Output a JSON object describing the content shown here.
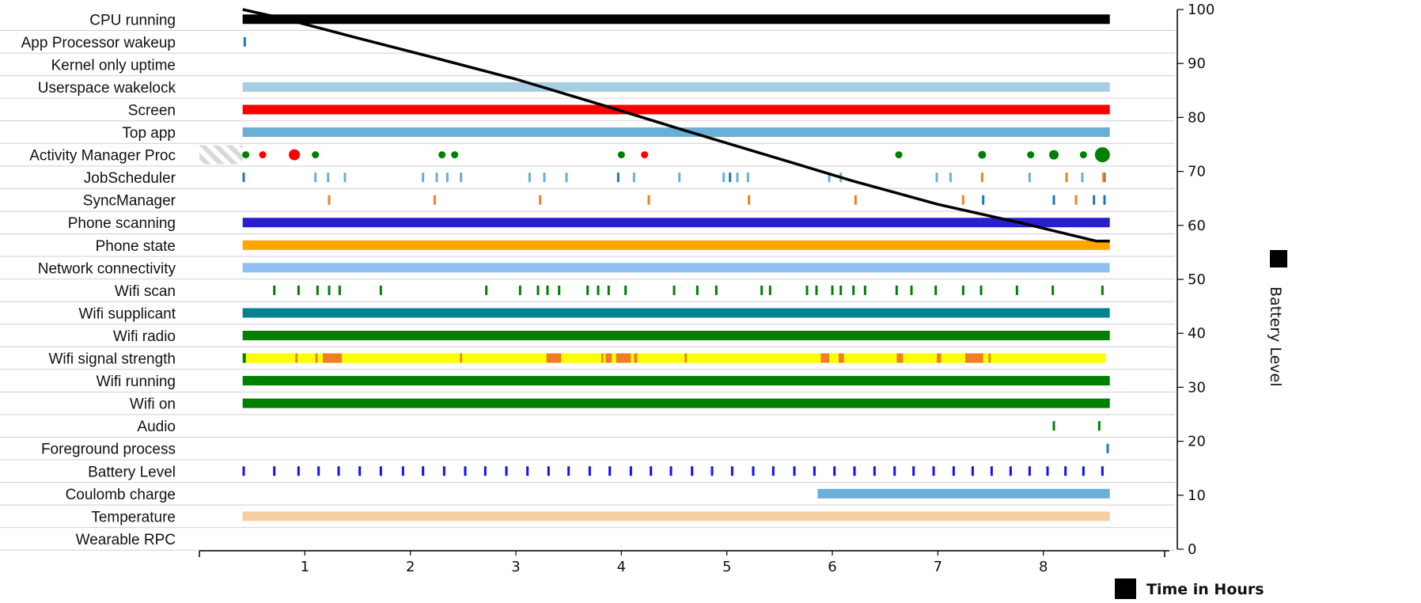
{
  "chart_data": {
    "type": "timeline",
    "xlabel": "Time in Hours",
    "ylabel": "Battery Level",
    "x_ticks": [
      1,
      2,
      3,
      4,
      5,
      6,
      7,
      8
    ],
    "y_ticks": [
      0,
      10,
      20,
      30,
      40,
      50,
      60,
      70,
      80,
      90,
      100
    ],
    "xlim": [
      0,
      9.15
    ],
    "ylim": [
      0,
      100
    ],
    "colors": {
      "black": "#000000",
      "gray": "#d9d9d9",
      "light_blue": "#a6cee3",
      "red": "#ff0000",
      "steel_blue": "#6baed6",
      "dark_blue": "#2a1fce",
      "orange": "#ffa500",
      "pale_blue": "#90c0f0",
      "teal": "#00838f",
      "green": "#008000",
      "yellow": "#ffff00",
      "peach": "#f7cfa3",
      "med_blue": "#1f78b4",
      "dark_orange": "#f07f20",
      "blue": "#1010ff"
    },
    "rows": [
      {
        "label": "CPU running",
        "items": [
          {
            "kind": "bar",
            "start": 0.41,
            "end": 8.63,
            "color": "black"
          }
        ]
      },
      {
        "label": "App Processor wakeup",
        "items": [
          {
            "kind": "ticks",
            "times": [
              0.43
            ],
            "color": "med_blue"
          }
        ]
      },
      {
        "label": "Kernel only uptime",
        "items": []
      },
      {
        "label": "Userspace wakelock",
        "items": [
          {
            "kind": "bar",
            "start": 0.41,
            "end": 8.63,
            "color": "light_blue"
          }
        ]
      },
      {
        "label": "Screen",
        "items": [
          {
            "kind": "bar",
            "start": 0.41,
            "end": 8.63,
            "color": "red"
          }
        ]
      },
      {
        "label": "Top app",
        "items": [
          {
            "kind": "bar",
            "start": 0.41,
            "end": 8.63,
            "color": "steel_blue"
          }
        ]
      },
      {
        "label": "Activity Manager Proc",
        "items": [
          {
            "kind": "hatch",
            "start": 0.0,
            "end": 0.41
          },
          {
            "kind": "dots",
            "points": [
              [
                0.44,
                0.4,
                "green"
              ],
              [
                0.6,
                0.4,
                "red"
              ],
              [
                0.9,
                0.9,
                "red"
              ],
              [
                1.1,
                0.4,
                "green"
              ],
              [
                2.3,
                0.4,
                "green"
              ],
              [
                2.42,
                0.4,
                "green"
              ],
              [
                4.0,
                0.4,
                "green"
              ],
              [
                4.22,
                0.4,
                "red"
              ],
              [
                6.63,
                0.4,
                "green"
              ],
              [
                7.42,
                0.5,
                "green"
              ],
              [
                7.88,
                0.4,
                "green"
              ],
              [
                8.1,
                0.7,
                "green"
              ],
              [
                8.38,
                0.4,
                "green"
              ],
              [
                8.56,
                1.4,
                "green"
              ]
            ]
          }
        ]
      },
      {
        "label": "JobScheduler",
        "items": [
          {
            "kind": "ticks",
            "times": [
              0.42,
              3.97,
              5.03,
              8.58
            ],
            "color": "med_blue"
          },
          {
            "kind": "ticks",
            "times": [
              1.1,
              1.22,
              1.38,
              2.12,
              2.25,
              2.35,
              2.48,
              3.13,
              3.27,
              3.48,
              4.12,
              4.55,
              4.97,
              5.1,
              5.2,
              5.97,
              6.08,
              6.99,
              7.12,
              7.87,
              8.37
            ],
            "color": "steel_blue"
          },
          {
            "kind": "ticks",
            "times": [
              7.42,
              8.22,
              8.57
            ],
            "color": "dark_orange"
          }
        ]
      },
      {
        "label": "SyncManager",
        "items": [
          {
            "kind": "ticks",
            "times": [
              1.23,
              2.23,
              3.23,
              4.26,
              5.21,
              6.22,
              7.24,
              8.31
            ],
            "color": "dark_orange"
          },
          {
            "kind": "ticks",
            "times": [
              7.43,
              8.1,
              8.48,
              8.58
            ],
            "color": "med_blue"
          }
        ]
      },
      {
        "label": "Phone scanning",
        "items": [
          {
            "kind": "bar",
            "start": 0.41,
            "end": 8.63,
            "color": "dark_blue"
          }
        ]
      },
      {
        "label": "Phone state",
        "items": [
          {
            "kind": "bar",
            "start": 0.41,
            "end": 8.63,
            "color": "orange"
          }
        ]
      },
      {
        "label": "Network connectivity",
        "items": [
          {
            "kind": "bar",
            "start": 0.41,
            "end": 8.63,
            "color": "pale_blue"
          }
        ]
      },
      {
        "label": "Wifi scan",
        "items": [
          {
            "kind": "ticks",
            "times": [
              0.71,
              0.94,
              1.12,
              1.23,
              1.33,
              1.72,
              2.72,
              3.04,
              3.21,
              3.3,
              3.41,
              3.68,
              3.78,
              3.88,
              4.04,
              4.5,
              4.72,
              4.9,
              5.33,
              5.41,
              5.76,
              5.85,
              6.0,
              6.08,
              6.2,
              6.31,
              6.61,
              6.75,
              6.98,
              7.24,
              7.41,
              7.75,
              8.09,
              8.56
            ],
            "color": "green"
          }
        ]
      },
      {
        "label": "Wifi supplicant",
        "items": [
          {
            "kind": "bar",
            "start": 0.41,
            "end": 8.63,
            "color": "teal"
          }
        ]
      },
      {
        "label": "Wifi radio",
        "items": [
          {
            "kind": "bar",
            "start": 0.41,
            "end": 8.63,
            "color": "green"
          }
        ]
      },
      {
        "label": "Wifi signal strength",
        "items": [
          {
            "kind": "bar",
            "start": 0.41,
            "end": 8.59,
            "color": "yellow"
          },
          {
            "kind": "segments",
            "color": "dark_orange",
            "ranges": [
              [
                0.91,
                0.93
              ],
              [
                1.1,
                1.12
              ],
              [
                1.17,
                1.35
              ],
              [
                2.47,
                2.49
              ],
              [
                3.29,
                3.43
              ],
              [
                3.81,
                3.83
              ],
              [
                3.85,
                3.91
              ],
              [
                3.95,
                4.09
              ],
              [
                4.12,
                4.15
              ],
              [
                4.6,
                4.62
              ],
              [
                5.89,
                5.97
              ],
              [
                6.06,
                6.11
              ],
              [
                6.61,
                6.67
              ],
              [
                6.99,
                7.03
              ],
              [
                7.26,
                7.43
              ],
              [
                7.48,
                7.5
              ]
            ]
          },
          {
            "kind": "segments",
            "color": "green",
            "ranges": [
              [
                0.41,
                0.44
              ]
            ]
          }
        ]
      },
      {
        "label": "Wifi running",
        "items": [
          {
            "kind": "bar",
            "start": 0.41,
            "end": 8.63,
            "color": "green"
          }
        ]
      },
      {
        "label": "Wifi on",
        "items": [
          {
            "kind": "bar",
            "start": 0.41,
            "end": 8.63,
            "color": "green"
          }
        ]
      },
      {
        "label": "Audio",
        "items": [
          {
            "kind": "ticks",
            "times": [
              8.1,
              8.53
            ],
            "color": "green"
          }
        ]
      },
      {
        "label": "Foreground process",
        "items": [
          {
            "kind": "ticks",
            "times": [
              8.61
            ],
            "color": "med_blue"
          }
        ]
      },
      {
        "label": "Battery Level",
        "items": [
          {
            "kind": "ticks",
            "times": [
              0.42,
              0.71,
              0.94,
              1.13,
              1.32,
              1.52,
              1.72,
              1.93,
              2.12,
              2.32,
              2.52,
              2.71,
              2.91,
              3.11,
              3.31,
              3.5,
              3.7,
              3.89,
              4.09,
              4.28,
              4.47,
              4.67,
              4.86,
              5.05,
              5.25,
              5.44,
              5.64,
              5.83,
              6.02,
              6.21,
              6.4,
              6.59,
              6.77,
              6.96,
              7.15,
              7.33,
              7.51,
              7.69,
              7.87,
              8.04,
              8.21,
              8.38,
              8.56
            ],
            "color": "blue"
          }
        ]
      },
      {
        "label": "Coulomb charge",
        "items": [
          {
            "kind": "bar",
            "start": 5.86,
            "end": 8.63,
            "color": "steel_blue"
          }
        ]
      },
      {
        "label": "Temperature",
        "items": [
          {
            "kind": "bar",
            "start": 0.41,
            "end": 8.63,
            "color": "peach"
          }
        ]
      },
      {
        "label": "Wearable RPC",
        "items": []
      }
    ],
    "battery_series": {
      "name": "Battery Level",
      "x": [
        0.41,
        0.8,
        1.5,
        2.2,
        3.0,
        3.8,
        4.6,
        5.4,
        6.2,
        7.0,
        7.8,
        8.5,
        8.63
      ],
      "y": [
        100,
        98.3,
        94.7,
        91.2,
        87.1,
        82.4,
        77.6,
        72.9,
        68.2,
        63.9,
        60.4,
        57.1,
        57.1
      ]
    }
  }
}
